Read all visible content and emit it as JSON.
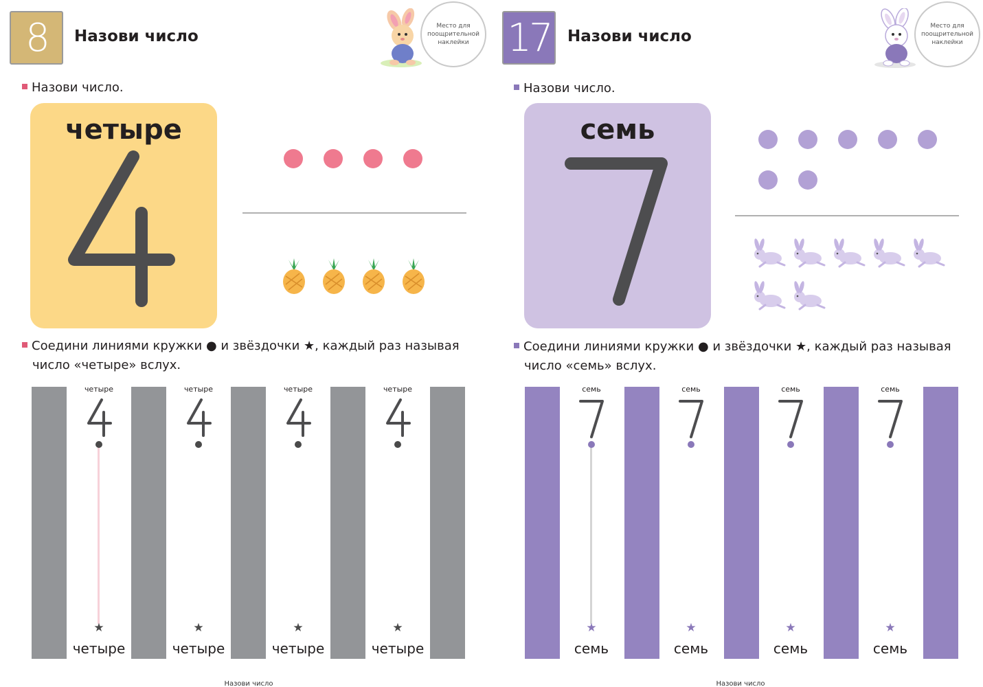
{
  "left": {
    "page_number": "8",
    "title": "Назови число",
    "sticker_text": "Место для поощрительной наклейки",
    "instruction1": "Назови число.",
    "number_word": "четыре",
    "number_digit": "4",
    "dot_count": 4,
    "item_count": 4,
    "item_icon": "pineapple-icon",
    "instruction2_line1": "Соедини линиями кружки ● и звёздочки ★, каждый раз называя",
    "instruction2_line2": "число «четыре» вслух.",
    "lanes": [
      {
        "top_word": "четыре",
        "digit": "4",
        "star": "★",
        "bottom_word": "четыре"
      },
      {
        "top_word": "четыре",
        "digit": "4",
        "star": "★",
        "bottom_word": "четыре"
      },
      {
        "top_word": "четыре",
        "digit": "4",
        "star": "★",
        "bottom_word": "четыре"
      },
      {
        "top_word": "четыре",
        "digit": "4",
        "star": "★",
        "bottom_word": "четыре"
      }
    ],
    "footer": "Назови число",
    "colors": {
      "accent": "#e05a77",
      "card": "#fcd887",
      "badge": "#d4b776",
      "bars": "#939598"
    }
  },
  "right": {
    "page_number": "17",
    "title": "Назови число",
    "sticker_text": "Место для поощрительной наклейки",
    "instruction1": "Назови число.",
    "number_word": "семь",
    "number_digit": "7",
    "dot_count": 7,
    "item_count": 7,
    "item_icon": "rabbit-icon",
    "instruction2_line1": "Соедини линиями кружки ● и звёздочки ★, каждый раз называя",
    "instruction2_line2": "число «семь» вслух.",
    "lanes": [
      {
        "top_word": "семь",
        "digit": "7",
        "star": "★",
        "bottom_word": "семь"
      },
      {
        "top_word": "семь",
        "digit": "7",
        "star": "★",
        "bottom_word": "семь"
      },
      {
        "top_word": "семь",
        "digit": "7",
        "star": "★",
        "bottom_word": "семь"
      },
      {
        "top_word": "семь",
        "digit": "7",
        "star": "★",
        "bottom_word": "семь"
      }
    ],
    "footer": "Назови число",
    "colors": {
      "accent": "#8a78b9",
      "card": "#cfc2e2",
      "badge": "#8a78b9",
      "bars": "#9484c0"
    }
  }
}
